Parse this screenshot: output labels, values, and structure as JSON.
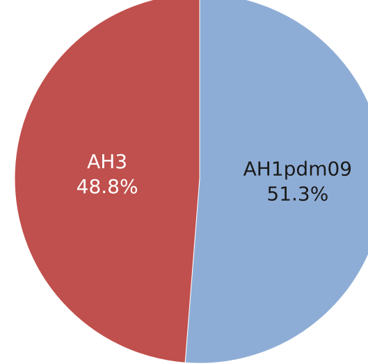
{
  "chart_data": {
    "type": "pie",
    "title": "",
    "slices": [
      {
        "name": "AH1pdm09",
        "value": 51.3,
        "label_pct": "51.3%",
        "color": "#8eadd6",
        "text_color": "#1a1a1a"
      },
      {
        "name": "AH3",
        "value": 48.8,
        "label_pct": "48.8%",
        "color": "#c0504d",
        "text_color": "#ffffff"
      }
    ],
    "start": "12 o'clock",
    "direction": "clockwise",
    "legend": "none"
  }
}
